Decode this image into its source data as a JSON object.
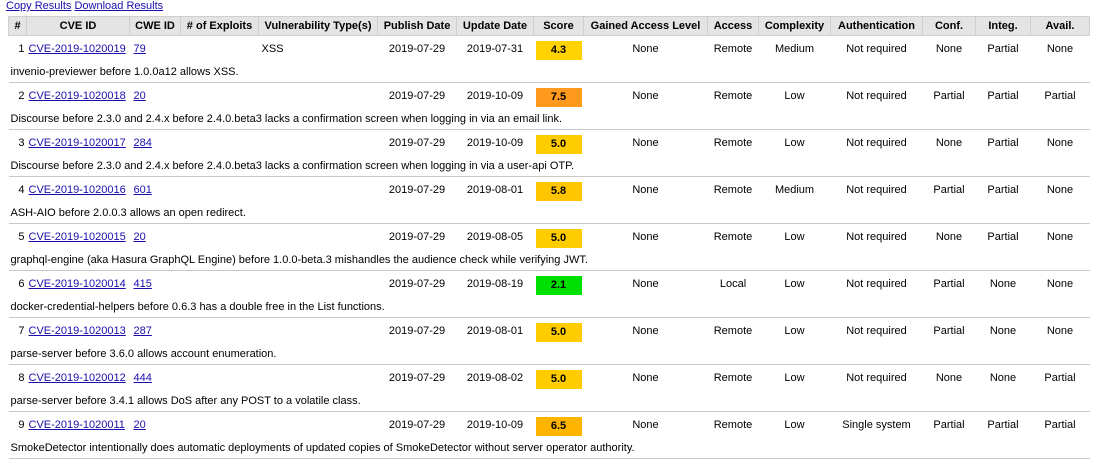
{
  "toolbar": {
    "copy_label": "Copy Results",
    "download_label": "Download Results"
  },
  "columns": [
    "#",
    "CVE ID",
    "CWE ID",
    "# of Exploits",
    "Vulnerability Type(s)",
    "Publish Date",
    "Update Date",
    "Score",
    "Gained Access Level",
    "Access",
    "Complexity",
    "Authentication",
    "Conf.",
    "Integ.",
    "Avail."
  ],
  "score_colors": {
    "2.1": "#00e000",
    "4.3": "#ffd200",
    "5.0": "#ffcc00",
    "5.8": "#ffc600",
    "6.5": "#ffb400",
    "7.5": "#ff9a1e"
  },
  "rows": [
    {
      "num": "1",
      "cve": "CVE-2019-1020019",
      "cwe": "79",
      "exploits": "",
      "vuln_type": "XSS",
      "publish": "2019-07-29",
      "update": "2019-07-31",
      "score": "4.3",
      "gained": "None",
      "access": "Remote",
      "complexity": "Medium",
      "auth": "Not required",
      "conf": "None",
      "integ": "Partial",
      "avail": "None",
      "description": "invenio-previewer before 1.0.0a12 allows XSS."
    },
    {
      "num": "2",
      "cve": "CVE-2019-1020018",
      "cwe": "20",
      "exploits": "",
      "vuln_type": "",
      "publish": "2019-07-29",
      "update": "2019-10-09",
      "score": "7.5",
      "gained": "None",
      "access": "Remote",
      "complexity": "Low",
      "auth": "Not required",
      "conf": "Partial",
      "integ": "Partial",
      "avail": "Partial",
      "description": "Discourse before 2.3.0 and 2.4.x before 2.4.0.beta3 lacks a confirmation screen when logging in via an email link."
    },
    {
      "num": "3",
      "cve": "CVE-2019-1020017",
      "cwe": "284",
      "exploits": "",
      "vuln_type": "",
      "publish": "2019-07-29",
      "update": "2019-10-09",
      "score": "5.0",
      "gained": "None",
      "access": "Remote",
      "complexity": "Low",
      "auth": "Not required",
      "conf": "None",
      "integ": "Partial",
      "avail": "None",
      "description": "Discourse before 2.3.0 and 2.4.x before 2.4.0.beta3 lacks a confirmation screen when logging in via a user-api OTP."
    },
    {
      "num": "4",
      "cve": "CVE-2019-1020016",
      "cwe": "601",
      "exploits": "",
      "vuln_type": "",
      "publish": "2019-07-29",
      "update": "2019-08-01",
      "score": "5.8",
      "gained": "None",
      "access": "Remote",
      "complexity": "Medium",
      "auth": "Not required",
      "conf": "Partial",
      "integ": "Partial",
      "avail": "None",
      "description": "ASH-AIO before 2.0.0.3 allows an open redirect."
    },
    {
      "num": "5",
      "cve": "CVE-2019-1020015",
      "cwe": "20",
      "exploits": "",
      "vuln_type": "",
      "publish": "2019-07-29",
      "update": "2019-08-05",
      "score": "5.0",
      "gained": "None",
      "access": "Remote",
      "complexity": "Low",
      "auth": "Not required",
      "conf": "None",
      "integ": "Partial",
      "avail": "None",
      "description": "graphql-engine (aka Hasura GraphQL Engine) before 1.0.0-beta.3 mishandles the audience check while verifying JWT."
    },
    {
      "num": "6",
      "cve": "CVE-2019-1020014",
      "cwe": "415",
      "exploits": "",
      "vuln_type": "",
      "publish": "2019-07-29",
      "update": "2019-08-19",
      "score": "2.1",
      "gained": "None",
      "access": "Local",
      "complexity": "Low",
      "auth": "Not required",
      "conf": "Partial",
      "integ": "None",
      "avail": "None",
      "description": "docker-credential-helpers before 0.6.3 has a double free in the List functions."
    },
    {
      "num": "7",
      "cve": "CVE-2019-1020013",
      "cwe": "287",
      "exploits": "",
      "vuln_type": "",
      "publish": "2019-07-29",
      "update": "2019-08-01",
      "score": "5.0",
      "gained": "None",
      "access": "Remote",
      "complexity": "Low",
      "auth": "Not required",
      "conf": "Partial",
      "integ": "None",
      "avail": "None",
      "description": "parse-server before 3.6.0 allows account enumeration."
    },
    {
      "num": "8",
      "cve": "CVE-2019-1020012",
      "cwe": "444",
      "exploits": "",
      "vuln_type": "",
      "publish": "2019-07-29",
      "update": "2019-08-02",
      "score": "5.0",
      "gained": "None",
      "access": "Remote",
      "complexity": "Low",
      "auth": "Not required",
      "conf": "None",
      "integ": "None",
      "avail": "Partial",
      "description": "parse-server before 3.4.1 allows DoS after any POST to a volatile class."
    },
    {
      "num": "9",
      "cve": "CVE-2019-1020011",
      "cwe": "20",
      "exploits": "",
      "vuln_type": "",
      "publish": "2019-07-29",
      "update": "2019-10-09",
      "score": "6.5",
      "gained": "None",
      "access": "Remote",
      "complexity": "Low",
      "auth": "Single system",
      "conf": "Partial",
      "integ": "Partial",
      "avail": "Partial",
      "description": "SmokeDetector intentionally does automatic deployments of updated copies of SmokeDetector without server operator authority."
    }
  ]
}
